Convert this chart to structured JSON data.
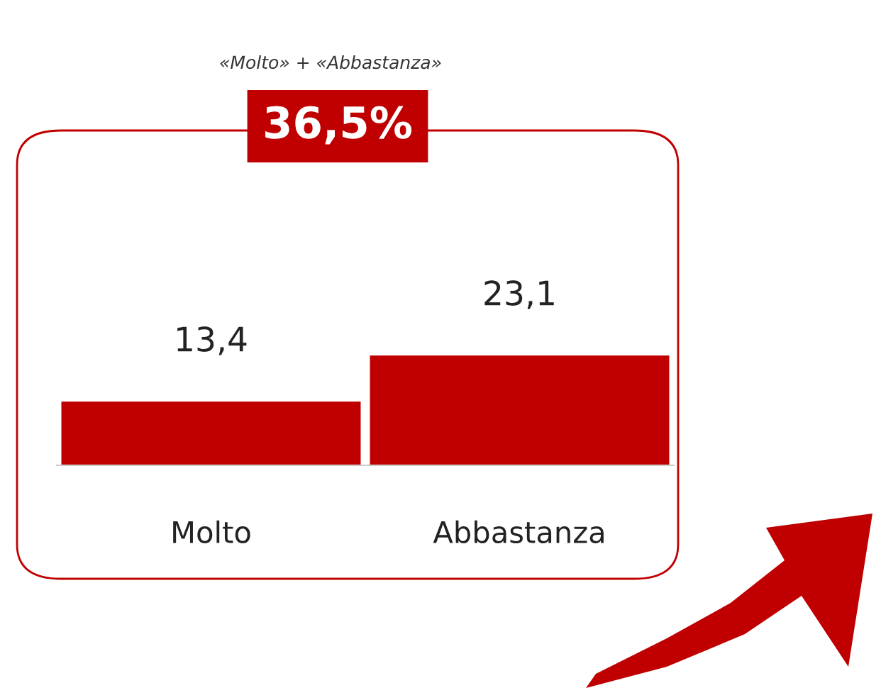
{
  "chart_data": {
    "type": "bar",
    "categories": [
      "Molto",
      "Abbastanza"
    ],
    "values": [
      13.4,
      23.1
    ],
    "value_labels": [
      "13,4",
      "23,1"
    ],
    "color": "#c00000",
    "annotations": [
      "«Molto» + «Abbastanza»",
      "36,5%"
    ],
    "grid": false,
    "legend": false
  }
}
